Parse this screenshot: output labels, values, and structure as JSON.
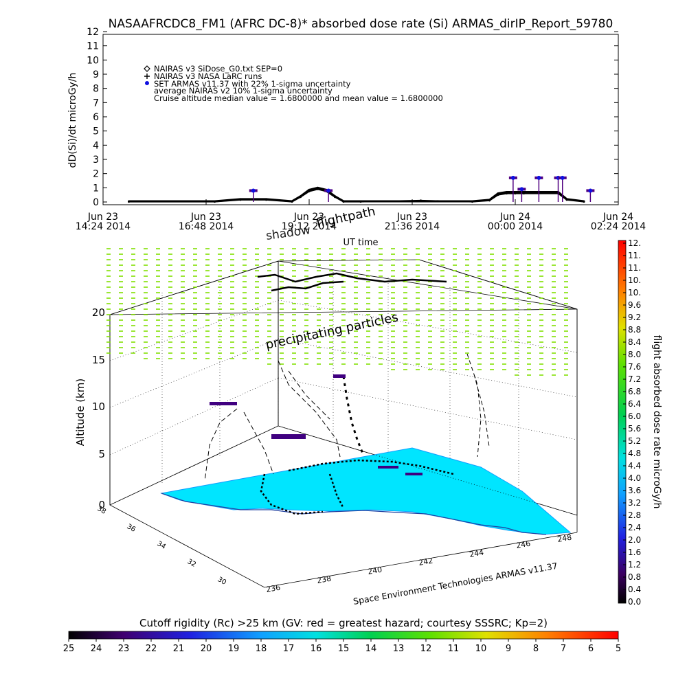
{
  "header": {
    "title": "NASAAFRCDC8_FM1 (AFRC DC-8)* absorbed dose rate (Si) ARMAS_dirIP_Report_59780"
  },
  "colors": {
    "nairas_v3": "#000000",
    "larc": "#000000",
    "set_armas": "#1010e0",
    "armas_cap": "#500080",
    "green_markers": "#80e000",
    "ground": "#00e5ff",
    "land_edge": "#10a0ff"
  },
  "chart_data": [
    {
      "type": "line",
      "title": "NASAAFRCDC8_FM1 (AFRC DC-8)* absorbed dose rate (Si) ARMAS_dirIP_Report_59780",
      "xlabel": "UT time",
      "ylabel": "dD(Si)/dt microGy/h",
      "ylim": [
        0,
        12
      ],
      "yticks": [
        "0",
        "1",
        "2",
        "3",
        "4",
        "5",
        "6",
        "7",
        "8",
        "9",
        "10",
        "11",
        "12"
      ],
      "xticks": [
        {
          "line1": "Jun 23",
          "line2": "14:24 2014"
        },
        {
          "line1": "Jun 23",
          "line2": "16:48 2014"
        },
        {
          "line1": "Jun 23",
          "line2": "19:12 2014"
        },
        {
          "line1": "Jun 23",
          "line2": "21:36 2014"
        },
        {
          "line1": "Jun 24",
          "line2": "00:00 2014"
        },
        {
          "line1": "Jun 24",
          "line2": "02:24 2014"
        }
      ],
      "xlim": [
        0,
        12
      ],
      "legend": [
        "NAIRAS v3 SiDose_G0.txt SEP=0",
        "NAIRAS v3 NASA LaRC runs",
        "SET ARMAS v11.37 with 22% 1-sigma uncertainty",
        "average NAIRAS v2 10% 1-sigma uncertainty",
        "Cruise altitude median value = 1.6800000 and mean value = 1.6800000"
      ],
      "legend_position": "top-left",
      "series": [
        {
          "name": "NAIRAS v3 SiDose_G0.txt SEP=0",
          "x": [
            0.6,
            2.6,
            3.2,
            3.8,
            4.4,
            4.6,
            4.8,
            5.0,
            5.2,
            5.4,
            5.6,
            6.0,
            7.4,
            8.6,
            9.0,
            9.2,
            9.4,
            9.6,
            9.8,
            10.6,
            10.8,
            11.2
          ],
          "y": [
            0.05,
            0.05,
            0.2,
            0.2,
            0.05,
            0.4,
            0.85,
            1.0,
            0.85,
            0.4,
            0.05,
            0.05,
            0.05,
            0.05,
            0.15,
            0.6,
            0.7,
            0.7,
            0.7,
            0.7,
            0.2,
            0.05
          ]
        },
        {
          "name": "NAIRAS v3 NASA LaRC runs",
          "x": [
            0.6,
            2.6,
            3.2,
            3.8,
            4.4,
            4.6,
            4.8,
            5.0,
            5.2,
            5.4,
            5.6,
            6.0,
            7.4,
            8.6,
            9.0,
            9.2,
            9.4,
            9.6,
            9.8,
            10.6,
            10.8,
            11.2
          ],
          "y": [
            0.02,
            0.02,
            0.15,
            0.15,
            0.02,
            0.35,
            0.75,
            0.9,
            0.75,
            0.35,
            0.02,
            0.02,
            0.1,
            0.02,
            0.1,
            0.5,
            0.6,
            0.6,
            0.6,
            0.6,
            0.15,
            0.02
          ]
        },
        {
          "name": "SET ARMAS v11.37 with 22% 1-sigma uncertainty",
          "x": [
            3.5,
            5.25,
            9.55,
            9.75,
            10.15,
            10.6,
            10.7,
            11.35
          ],
          "y": [
            0.8,
            0.8,
            1.7,
            0.9,
            1.7,
            1.7,
            1.7,
            0.8
          ]
        }
      ]
    },
    {
      "type": "scatter",
      "title": "",
      "zlabel": "Altitude (km)",
      "zticks": [
        "0",
        "5",
        "10",
        "15",
        "20"
      ],
      "latitude_ticks": [
        "30",
        "32",
        "34",
        "36",
        "38"
      ],
      "longitude_ticks": [
        "236",
        "238",
        "240",
        "242",
        "244",
        "246",
        "248"
      ],
      "annotations": [
        "shadow",
        "flightpath",
        "precipitating particles"
      ],
      "credit": "Space Environment Technologies ARMAS v11.37"
    },
    {
      "type": "heatmap",
      "title": "flight absorbed dose rate microGy/h",
      "range": [
        0.0,
        12.0
      ],
      "ticks": [
        "0.0",
        "0.4",
        "0.8",
        "1.2",
        "1.6",
        "2.0",
        "2.4",
        "2.8",
        "3.2",
        "3.6",
        "4.0",
        "4.4",
        "4.8",
        "5.2",
        "5.6",
        "6.0",
        "6.4",
        "6.8",
        "7.2",
        "7.6",
        "8.0",
        "8.4",
        "8.8",
        "9.2",
        "9.6",
        "10.",
        "10.",
        "11.",
        "11.",
        "12."
      ]
    },
    {
      "type": "heatmap",
      "title": "Cutoff rigidity (Rc) >25 km (GV: red = greatest hazard; courtesy SSSRC; Kp=2)",
      "range": [
        25,
        5
      ],
      "ticks": [
        "25",
        "24",
        "23",
        "22",
        "21",
        "20",
        "19",
        "18",
        "17",
        "16",
        "15",
        "14",
        "13",
        "12",
        "11",
        "10",
        "9",
        "8",
        "7",
        "6",
        "5"
      ]
    }
  ]
}
